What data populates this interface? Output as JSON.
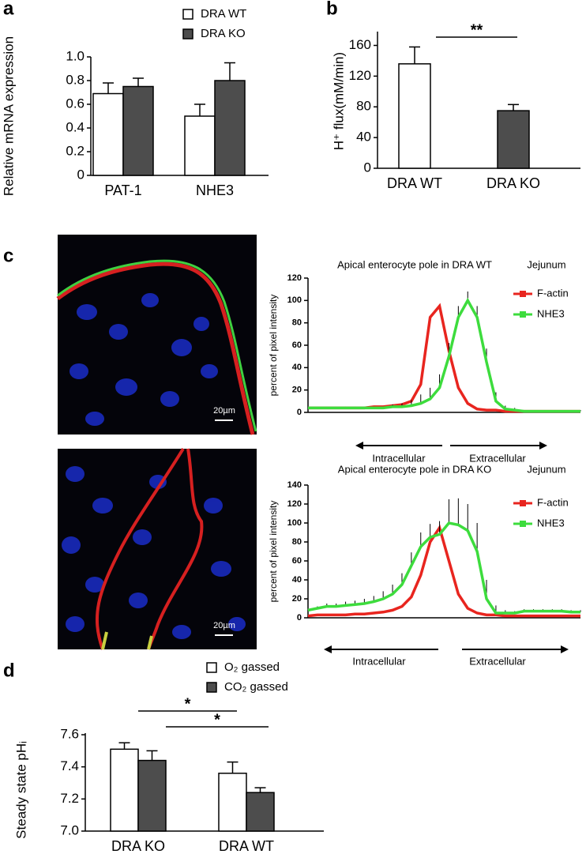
{
  "chart_data": [
    {
      "type": "bar",
      "panel_label": "a",
      "ylabel": "Relative mRNA expression",
      "categories": [
        "PAT-1",
        "NHE3"
      ],
      "series": [
        {
          "name": "DRA WT",
          "color": "#ffffff",
          "values": [
            0.69,
            0.5
          ],
          "errors": [
            0.09,
            0.1
          ]
        },
        {
          "name": "DRA KO",
          "color": "#4d4d4d",
          "values": [
            0.75,
            0.8
          ],
          "errors": [
            0.07,
            0.15
          ]
        }
      ],
      "ylim": [
        0,
        1
      ],
      "yticks": [
        0,
        0.2,
        0.4,
        0.6,
        0.8,
        {
          "value": 1,
          "label": "1.0"
        }
      ]
    },
    {
      "type": "bar",
      "panel_label": "b",
      "ylabel": "H⁺ flux(mM/min)",
      "categories": [
        "DRA WT",
        "DRA KO"
      ],
      "values": [
        136,
        75
      ],
      "errors": [
        22,
        8
      ],
      "colors": [
        "#ffffff",
        "#4d4d4d"
      ],
      "annotations": [
        "**"
      ],
      "ylim": [
        0,
        178
      ],
      "yticks": [
        0,
        40,
        80,
        120,
        160
      ]
    },
    {
      "type": "line",
      "panel_label": "c",
      "title": "Apical enterocyte pole in DRA WT",
      "subtitle": "Jejunum",
      "ylabel": "percent of pixel intensity",
      "scale_bar": "20µm",
      "left_label": "Intracellular",
      "right_label": "Extracellular",
      "series": [
        {
          "name": "F-actin",
          "color": "#e8251f",
          "values": [
            4,
            4,
            4,
            4,
            4,
            4,
            4,
            5,
            5,
            6,
            7,
            10,
            25,
            85,
            95,
            55,
            22,
            8,
            3,
            2,
            2,
            1,
            1,
            1,
            1,
            1,
            1,
            1,
            1,
            1
          ]
        },
        {
          "name": "NHE3",
          "color": "#3ddc3d",
          "values": [
            4,
            4,
            4,
            4,
            4,
            4,
            4,
            4,
            4,
            5,
            5,
            6,
            8,
            12,
            22,
            50,
            85,
            100,
            85,
            45,
            10,
            3,
            2,
            1,
            1,
            1,
            1,
            1,
            1,
            1
          ],
          "errors": [
            1,
            1,
            1,
            1,
            1,
            1,
            1,
            1,
            1,
            2,
            3,
            5,
            8,
            10,
            12,
            12,
            10,
            8,
            10,
            12,
            8,
            3,
            2,
            1,
            1,
            1,
            1,
            1,
            1,
            1
          ]
        }
      ],
      "ylim": [
        0,
        120
      ],
      "yticks": [
        0,
        20,
        40,
        60,
        80,
        100,
        120
      ]
    },
    {
      "type": "line",
      "title": "Apical enterocyte pole in DRA KO",
      "subtitle": "Jejunum",
      "ylabel": "percent of pixel intensity",
      "scale_bar": "20µm",
      "left_label": "Intracellular",
      "right_label": "Extracellular",
      "series": [
        {
          "name": "F-actin",
          "color": "#e8251f",
          "values": [
            2,
            3,
            3,
            3,
            3,
            4,
            4,
            5,
            6,
            8,
            12,
            22,
            45,
            80,
            95,
            60,
            25,
            10,
            5,
            3,
            3,
            2,
            2,
            2,
            2,
            2,
            2,
            2,
            2,
            2
          ]
        },
        {
          "name": "NHE3",
          "color": "#3ddc3d",
          "values": [
            8,
            10,
            12,
            12,
            13,
            14,
            15,
            17,
            20,
            25,
            35,
            55,
            75,
            85,
            88,
            100,
            98,
            92,
            70,
            20,
            5,
            5,
            5,
            7,
            7,
            7,
            7,
            7,
            6,
            6
          ],
          "errors": [
            2,
            2,
            3,
            3,
            4,
            4,
            5,
            6,
            8,
            10,
            12,
            14,
            15,
            14,
            14,
            25,
            28,
            28,
            30,
            20,
            8,
            3,
            2,
            2,
            2,
            2,
            2,
            2,
            2,
            2
          ]
        }
      ],
      "ylim": [
        0,
        140
      ],
      "yticks": [
        0,
        20,
        40,
        60,
        80,
        100,
        120,
        140
      ]
    },
    {
      "type": "bar",
      "panel_label": "d",
      "ylabel": "Steady state pHᵢ",
      "categories": [
        "DRA KO",
        "DRA WT"
      ],
      "series": [
        {
          "name": "O₂ gassed",
          "color": "#ffffff",
          "values": [
            7.51,
            7.36
          ],
          "errors": [
            0.04,
            0.07
          ]
        },
        {
          "name": "CO₂ gassed",
          "color": "#4d4d4d",
          "values": [
            7.44,
            7.24
          ],
          "errors": [
            0.06,
            0.03
          ]
        }
      ],
      "annotations": [
        "*",
        "*"
      ],
      "ylim": [
        7,
        7.61
      ],
      "yticks": [
        {
          "value": 7,
          "label": "7.0"
        },
        7.2,
        7.4,
        7.6
      ]
    }
  ]
}
